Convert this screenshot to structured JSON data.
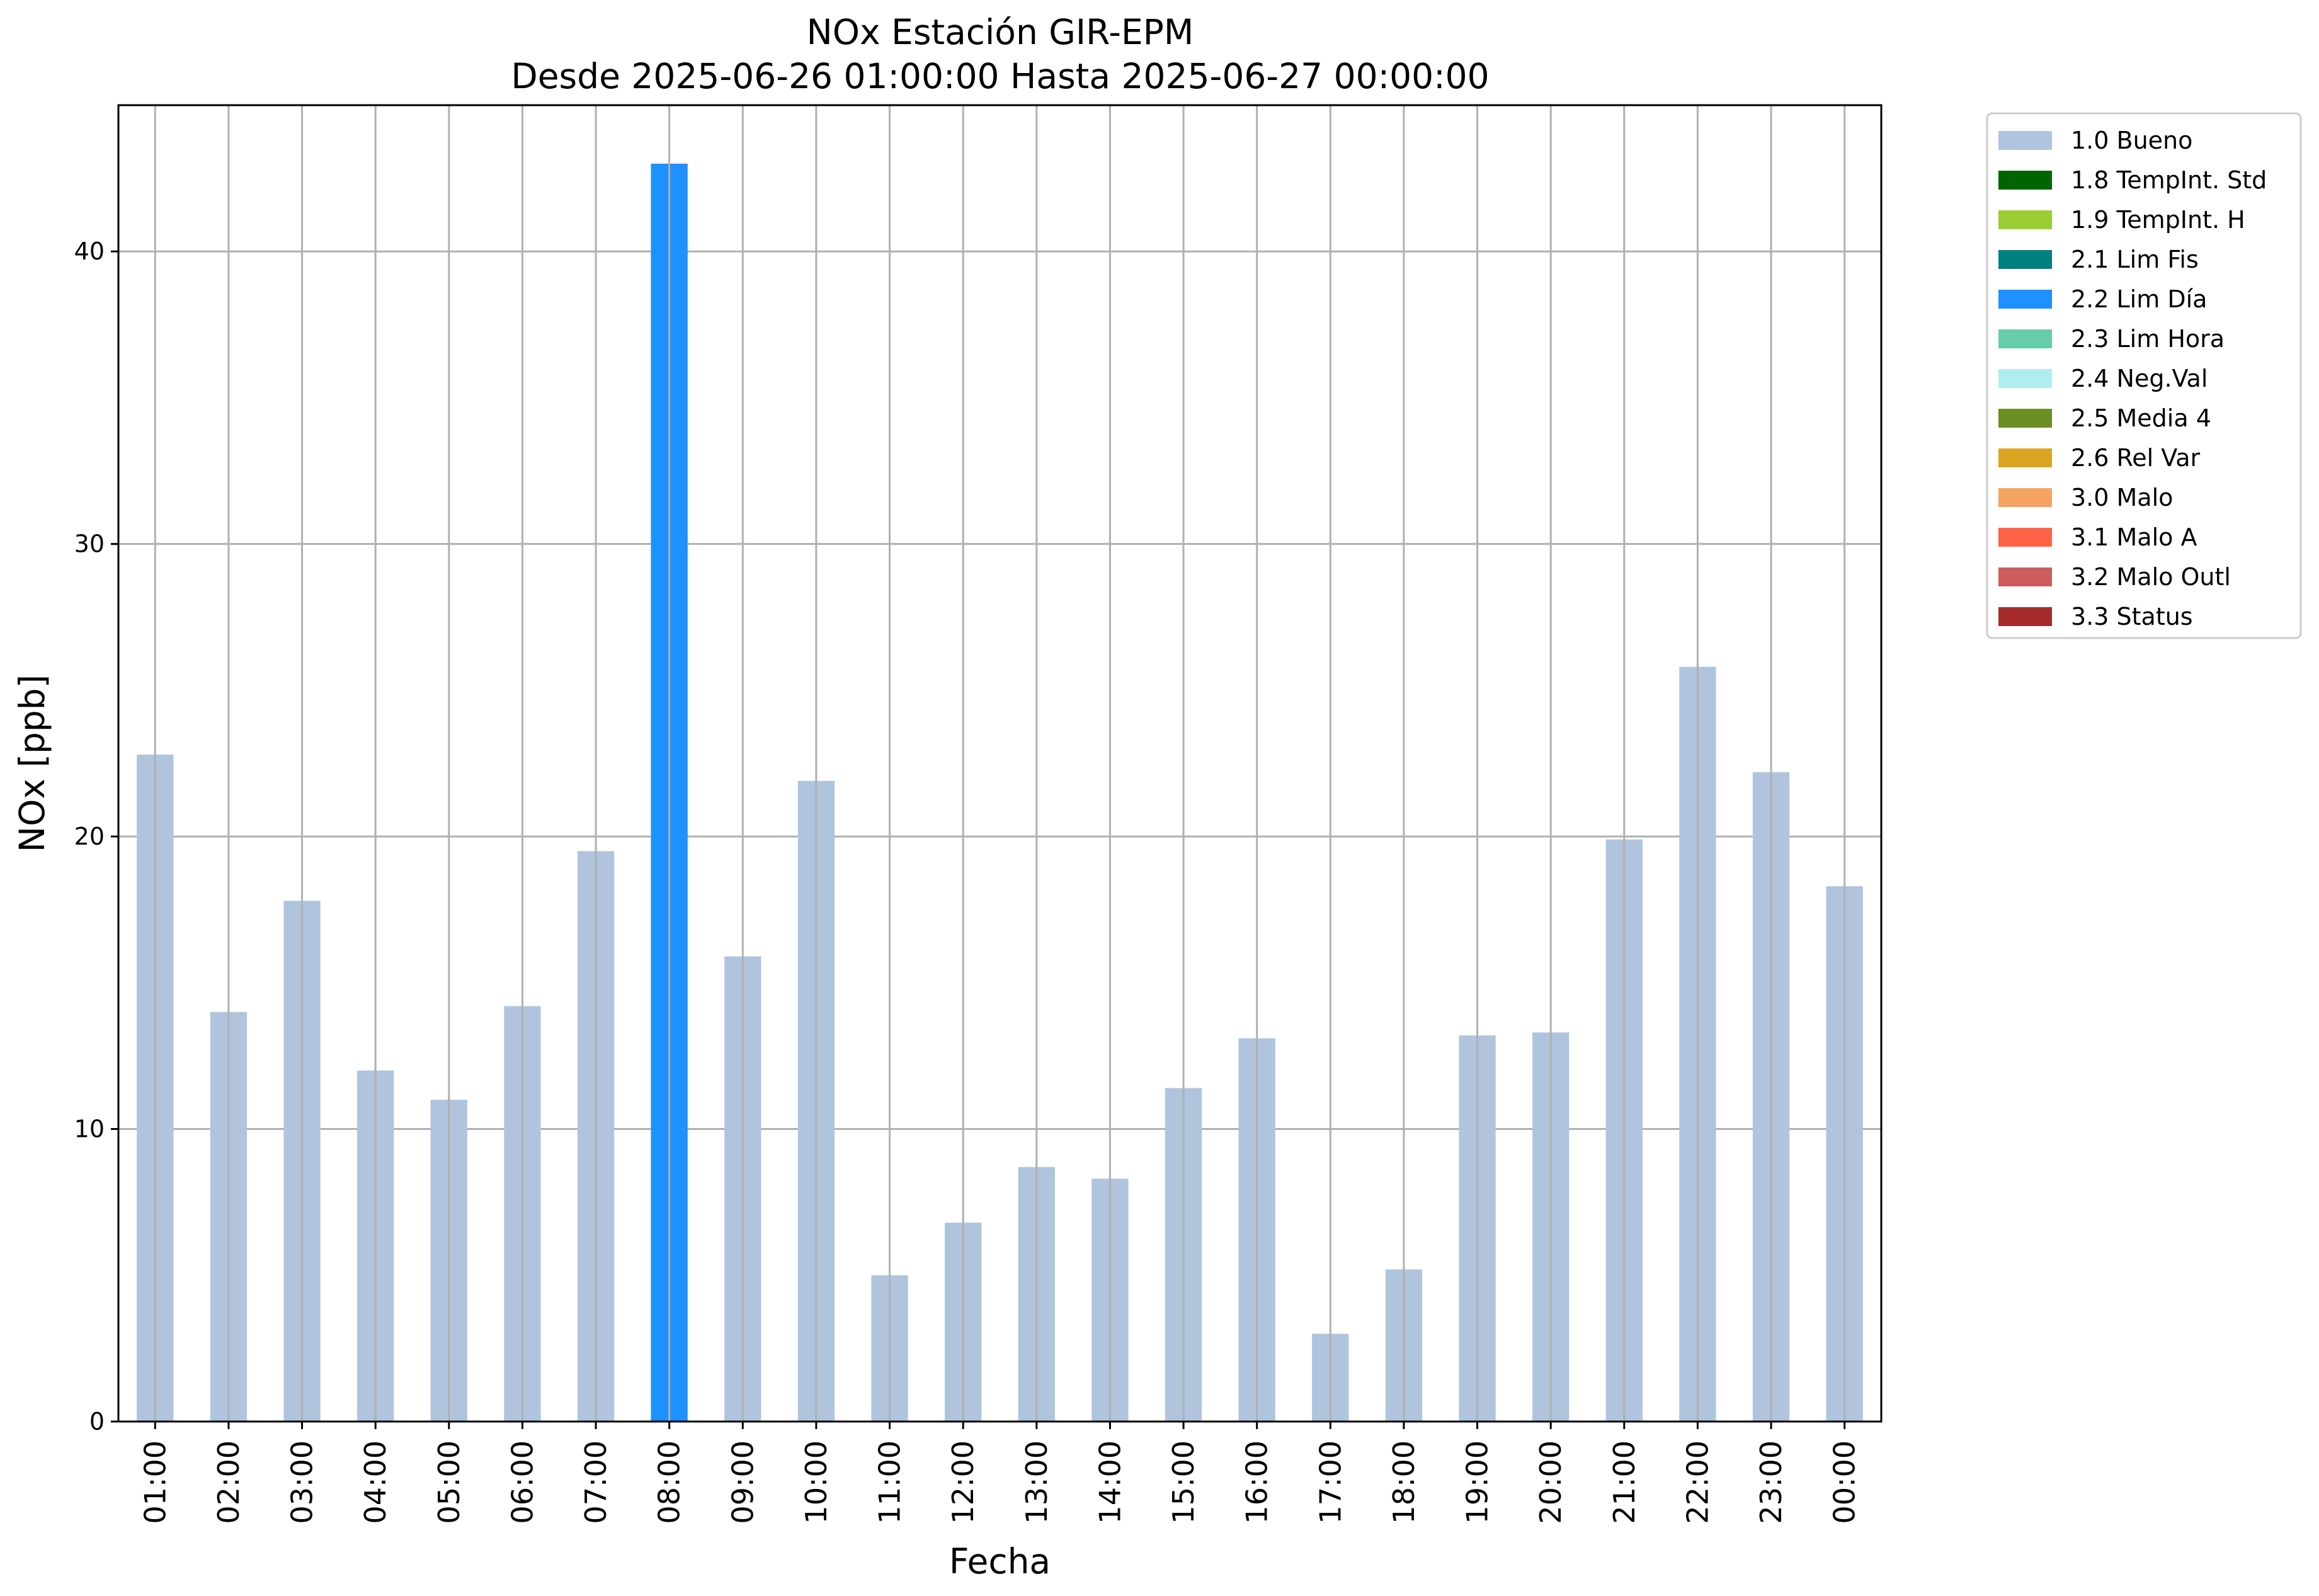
{
  "chart_data": {
    "type": "bar",
    "title": "NOx Estación GIR-EPM",
    "subtitle": "Desde 2025-06-26 01:00:00 Hasta 2025-06-27 00:00:00",
    "xlabel": "Fecha",
    "ylabel": "NOx [ppb]",
    "ylim": [
      0,
      45
    ],
    "yticks": [
      0,
      10,
      20,
      30,
      40
    ],
    "grid": true,
    "legend_position": "outside-top-right",
    "categories": [
      "01:00",
      "02:00",
      "03:00",
      "04:00",
      "05:00",
      "06:00",
      "07:00",
      "08:00",
      "09:00",
      "10:00",
      "11:00",
      "12:00",
      "13:00",
      "14:00",
      "15:00",
      "16:00",
      "17:00",
      "18:00",
      "19:00",
      "20:00",
      "21:00",
      "22:00",
      "23:00",
      "00:00"
    ],
    "values": [
      22.8,
      14.0,
      17.8,
      12.0,
      11.0,
      14.2,
      19.5,
      43.0,
      15.9,
      21.9,
      5.0,
      6.8,
      8.7,
      8.3,
      11.4,
      13.1,
      3.0,
      5.2,
      13.2,
      13.3,
      19.9,
      25.8,
      22.2,
      18.3
    ],
    "flags": [
      "1.0 Bueno",
      "1.0 Bueno",
      "1.0 Bueno",
      "1.0 Bueno",
      "1.0 Bueno",
      "1.0 Bueno",
      "1.0 Bueno",
      "2.2 Lim Día",
      "1.0 Bueno",
      "1.0 Bueno",
      "1.0 Bueno",
      "1.0 Bueno",
      "1.0 Bueno",
      "1.0 Bueno",
      "1.0 Bueno",
      "1.0 Bueno",
      "1.0 Bueno",
      "1.0 Bueno",
      "1.0 Bueno",
      "1.0 Bueno",
      "1.0 Bueno",
      "1.0 Bueno",
      "1.0 Bueno",
      "1.0 Bueno"
    ],
    "legend": [
      {
        "label": "1.0 Bueno",
        "color": "#b0c4de"
      },
      {
        "label": "1.8 TempInt. Std",
        "color": "#006400"
      },
      {
        "label": "1.9 TempInt. H",
        "color": "#9acd32"
      },
      {
        "label": "2.1 Lim Fis",
        "color": "#008080"
      },
      {
        "label": "2.2 Lim Día",
        "color": "#1e90ff"
      },
      {
        "label": "2.3 Lim Hora",
        "color": "#66cdaa"
      },
      {
        "label": "2.4 Neg.Val",
        "color": "#afeeee"
      },
      {
        "label": "2.5 Media 4",
        "color": "#6b8e23"
      },
      {
        "label": "2.6 Rel Var",
        "color": "#daa520"
      },
      {
        "label": "3.0 Malo",
        "color": "#f4a460"
      },
      {
        "label": "3.1 Malo A",
        "color": "#ff6347"
      },
      {
        "label": "3.2 Malo Outl",
        "color": "#cd5c5c"
      },
      {
        "label": "3.3 Status",
        "color": "#a52a2a"
      }
    ]
  }
}
